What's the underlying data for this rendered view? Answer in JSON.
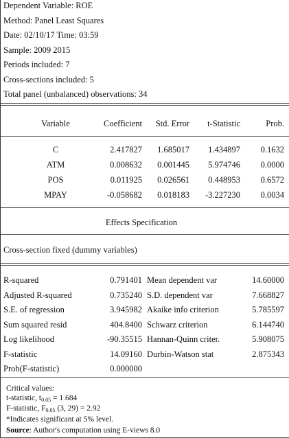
{
  "header": {
    "lines": [
      "Dependent Variable: ROE",
      "Method: Panel Least Squares",
      "Date: 02/10/17 Time: 03:59",
      "Sample: 2009 2015",
      "Periods included: 7",
      "Cross-sections included: 5",
      "Total panel (unbalanced) observations: 34"
    ]
  },
  "table": {
    "columns": [
      "Variable",
      "Coefficient",
      "Std. Error",
      "t-Statistic",
      "Prob."
    ],
    "rows": [
      [
        "C",
        "2.417827",
        "1.685017",
        "1.434897",
        "0.1632"
      ],
      [
        "ATM",
        "0.008632",
        "0.001445",
        "5.974746",
        "0.0000"
      ],
      [
        "POS",
        "0.011925",
        "0.026561",
        "0.448953",
        "0.6572"
      ],
      [
        "MPAY",
        "-0.058682",
        "0.018183",
        "-3.227230",
        "0.0034"
      ]
    ]
  },
  "effects": {
    "title": "Effects Specification",
    "spec": "Cross-section fixed (dummy variables)"
  },
  "statistics": {
    "rows": [
      [
        "R-squared",
        "0.791401",
        "Mean dependent var",
        "14.60000"
      ],
      [
        "Adjusted R-squared",
        "0.735240",
        "S.D. dependent var",
        "7.668827"
      ],
      [
        "S.E. of regression",
        "3.945982",
        "Akaike info criterion",
        "5.785597"
      ],
      [
        "Sum squared resid",
        "404.8400",
        "Schwarz criterion",
        "6.144740"
      ],
      [
        "Log likelihood",
        "-90.35515",
        "Hannan-Quinn criter.",
        "5.908075"
      ],
      [
        "F-statistic",
        "14.09160",
        "Durbin-Watson stat",
        "2.875343"
      ],
      [
        "Prob(F-statistic)",
        "0.000000"
      ]
    ]
  },
  "notes": {
    "title": "Critical values:",
    "t_statistic": {
      "prefix": "t-statistic, t",
      "subscript": "0.05",
      "suffix": " = 1.684"
    },
    "f_statistic": {
      "prefix": "F-statistic, F",
      "subscript": "0.05",
      "suffix": " (3, 29) = 2.92"
    },
    "significance": "*Indicates significant at 5% level.",
    "source": {
      "label": "Source",
      "text": ": Author's computation using E-views 8.0"
    }
  }
}
